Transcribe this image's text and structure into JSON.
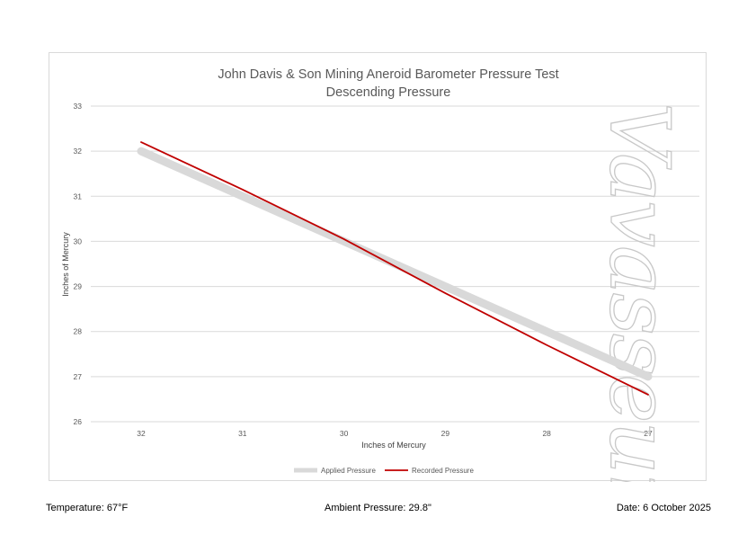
{
  "chart_data": {
    "type": "line",
    "title": [
      "John Davis & Son Mining Aneroid Barometer Pressure Test",
      "Descending Pressure"
    ],
    "xlabel": "Inches of Mercury",
    "ylabel": "Inches of Mercury",
    "x": [
      32,
      31,
      30,
      29,
      28,
      27
    ],
    "x_tick_labels": [
      "32",
      "31",
      "30",
      "29",
      "28",
      "27"
    ],
    "y_ticks": [
      26,
      27,
      28,
      29,
      30,
      31,
      32,
      33
    ],
    "y_tick_labels": [
      "26",
      "27",
      "28",
      "29",
      "30",
      "31",
      "32",
      "33"
    ],
    "ylim": [
      26,
      33
    ],
    "x_direction": "descending",
    "grid": "horizontal",
    "legend_position": "bottom",
    "series": [
      {
        "name": "Applied Pressure",
        "values": [
          32,
          31,
          30,
          29,
          28,
          27
        ],
        "color": "#d9d9d9"
      },
      {
        "name": "Recorded Pressure",
        "values": [
          32.2,
          31.15,
          30.05,
          28.85,
          27.7,
          26.6
        ],
        "color": "#c00000"
      }
    ],
    "watermark": "Vavasseur"
  },
  "footer": {
    "temperature": "Temperature: 67°F",
    "ambient_pressure": "Ambient Pressure: 29.8\"",
    "date": "Date: 6 October 2025"
  }
}
